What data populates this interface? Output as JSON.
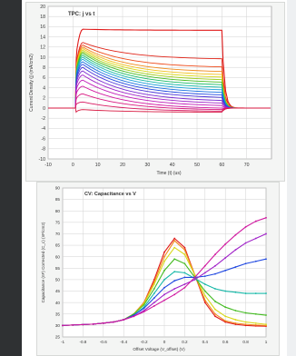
{
  "chart_data": [
    {
      "type": "line",
      "title": "TPC: j vs t",
      "xlabel": "Time (t) (us)",
      "ylabel": "Current Density (j) (mA/cm2)",
      "xlim": [
        -10,
        80
      ],
      "ylim": [
        -10,
        20
      ],
      "x_ticks": [
        -10,
        0,
        10,
        20,
        30,
        40,
        50,
        60,
        70
      ],
      "y_ticks": [
        -10,
        -8,
        -6,
        -4,
        -2,
        0,
        2,
        4,
        6,
        8,
        10,
        12,
        14,
        16,
        18,
        20
      ],
      "grid": true,
      "pulse_start": 1,
      "pulse_end": 60,
      "series": [
        {
          "color": "#e01818",
          "peak": 15.5,
          "end": 15.3
        },
        {
          "color": "#e02418",
          "peak": 12.9,
          "end": 9.7
        },
        {
          "color": "#ee4a1a",
          "peak": 12.4,
          "end": 8.1
        },
        {
          "color": "#f08a1c",
          "peak": 12.0,
          "end": 7.2
        },
        {
          "color": "#f0c01c",
          "peak": 11.7,
          "end": 6.6
        },
        {
          "color": "#d8d818",
          "peak": 11.4,
          "end": 6.1
        },
        {
          "color": "#9ccc18",
          "peak": 11.1,
          "end": 5.6
        },
        {
          "color": "#44bb22",
          "peak": 10.8,
          "end": 5.1
        },
        {
          "color": "#18bb66",
          "peak": 10.4,
          "end": 4.6
        },
        {
          "color": "#18b8a8",
          "peak": 10.0,
          "end": 4.1
        },
        {
          "color": "#1aa0d8",
          "peak": 9.6,
          "end": 3.6
        },
        {
          "color": "#1a70e0",
          "peak": 9.1,
          "end": 3.1
        },
        {
          "color": "#2048e0",
          "peak": 8.6,
          "end": 2.6
        },
        {
          "color": "#4a34d8",
          "peak": 8.0,
          "end": 2.1
        },
        {
          "color": "#7a2ad0",
          "peak": 7.3,
          "end": 1.5
        },
        {
          "color": "#a022c8",
          "peak": 6.5,
          "end": 1.0
        },
        {
          "color": "#c01cb8",
          "peak": 5.5,
          "end": 0.5
        },
        {
          "color": "#d018a0",
          "peak": 4.3,
          "end": 0.0
        },
        {
          "color": "#d81880",
          "peak": 2.8,
          "end": -0.3
        },
        {
          "color": "#d81860",
          "peak": 1.2,
          "end": -0.6
        },
        {
          "color": "#d81840",
          "peak": -0.3,
          "end": -0.8
        }
      ]
    },
    {
      "type": "line",
      "title": "CV: Capacitance vs V",
      "xlabel": "Offset Voltage (V_offset) (V)",
      "ylabel": "Capacitance (nF) Corrected (C_c) (nF/cm2)",
      "xlim": [
        -1,
        1
      ],
      "ylim": [
        25,
        90
      ],
      "x_ticks": [
        -1,
        -0.8,
        -0.6,
        -0.4,
        -0.2,
        0,
        0.2,
        0.4,
        0.6,
        0.8,
        1
      ],
      "y_ticks": [
        25,
        30,
        35,
        40,
        45,
        50,
        55,
        60,
        65,
        70,
        75,
        80,
        85,
        90
      ],
      "x_tick_labels": [
        "-1",
        "-0.8",
        "-0.6",
        "-0.4",
        "-0.2",
        "0",
        "0.2",
        "0.4",
        "0.6",
        "0.8",
        "1"
      ],
      "x_tick_labels_right": [
        "1.2",
        "1.4",
        "1.6",
        "1.8"
      ],
      "grid": true,
      "x": [
        -1.0,
        -0.9,
        -0.8,
        -0.7,
        -0.6,
        -0.5,
        -0.4,
        -0.3,
        -0.2,
        -0.1,
        0.0,
        0.1,
        0.2,
        0.3,
        0.4,
        0.5,
        0.6,
        0.7,
        0.8,
        0.9,
        1.0
      ],
      "series": [
        {
          "color": "#e01818",
          "values": [
            30,
            30.2,
            30.4,
            30.6,
            31,
            31.5,
            32.5,
            35,
            40,
            50,
            62,
            68,
            64,
            52,
            40,
            34,
            31.5,
            30.5,
            30,
            29.8,
            29.7
          ]
        },
        {
          "color": "#f08a1c",
          "values": [
            30,
            30.2,
            30.4,
            30.6,
            31,
            31.5,
            32.5,
            35,
            40,
            49,
            60,
            67,
            63,
            52,
            41,
            35,
            32,
            31,
            30.5,
            30.2,
            30
          ]
        },
        {
          "color": "#d8d818",
          "values": [
            30,
            30.2,
            30.4,
            30.6,
            31,
            31.5,
            32.5,
            35,
            39.5,
            48,
            58,
            64,
            61,
            52,
            43,
            37,
            34,
            32.5,
            31.5,
            31,
            30.5
          ]
        },
        {
          "color": "#44bb22",
          "values": [
            30,
            30.2,
            30.4,
            30.6,
            31,
            31.5,
            32.5,
            35,
            39,
            46,
            54,
            59,
            57,
            51,
            45,
            40.5,
            38,
            36.5,
            35.5,
            35,
            34.5
          ]
        },
        {
          "color": "#18b8a8",
          "values": [
            30,
            30.2,
            30.4,
            30.6,
            31,
            31.5,
            32.5,
            34.5,
            38,
            44,
            50,
            53.5,
            53,
            50.5,
            48,
            46,
            45,
            44.5,
            44,
            44,
            44
          ]
        },
        {
          "color": "#2048e0",
          "values": [
            30,
            30.2,
            30.4,
            30.6,
            31,
            31.5,
            32.5,
            34.5,
            37.5,
            42,
            46.5,
            49.5,
            51,
            51,
            51.5,
            52.5,
            54,
            55.5,
            57,
            58,
            59
          ]
        },
        {
          "color": "#a022c8",
          "values": [
            30,
            30.2,
            30.4,
            30.6,
            31,
            31.5,
            32.5,
            34,
            36.5,
            40,
            43.5,
            46,
            48,
            50,
            53,
            56,
            59.5,
            63,
            66,
            68,
            70
          ]
        },
        {
          "color": "#d018a0",
          "values": [
            30,
            30.2,
            30.4,
            30.6,
            31,
            31.5,
            32.5,
            34,
            36,
            38.5,
            41,
            43.5,
            46.5,
            51,
            56,
            61,
            65.5,
            69.5,
            73,
            75.5,
            77
          ]
        }
      ]
    }
  ]
}
